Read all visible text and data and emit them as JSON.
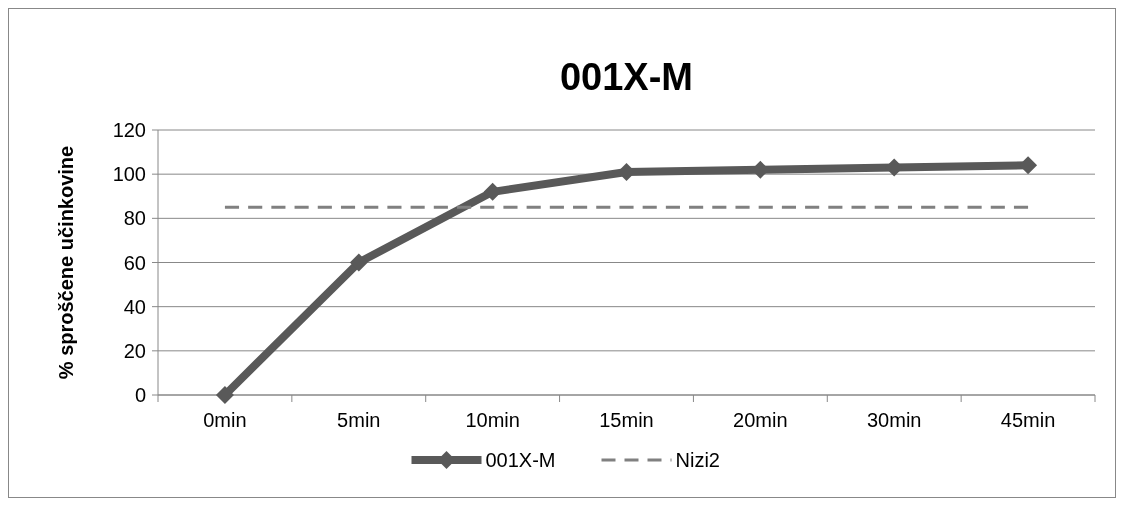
{
  "chart_data": {
    "type": "line",
    "title": "001X-M",
    "ylabel": "% sproščene učinkovine",
    "categories": [
      "0min",
      "5min",
      "10min",
      "15min",
      "20min",
      "30min",
      "45min"
    ],
    "series": [
      {
        "name": "001X-M",
        "color": "#595959",
        "values": [
          0,
          60,
          92,
          101,
          102,
          103,
          104
        ],
        "marker": "diamond",
        "line_style": "solid"
      },
      {
        "name": "Nizi2",
        "color": "#808080",
        "values": [
          85,
          85,
          85,
          85,
          85,
          85,
          85
        ],
        "marker": "none",
        "line_style": "dashed"
      }
    ],
    "ylim": [
      0,
      120
    ],
    "yticks": [
      0,
      20,
      40,
      60,
      80,
      100,
      120
    ],
    "grid": "y",
    "legend": "bottom"
  }
}
